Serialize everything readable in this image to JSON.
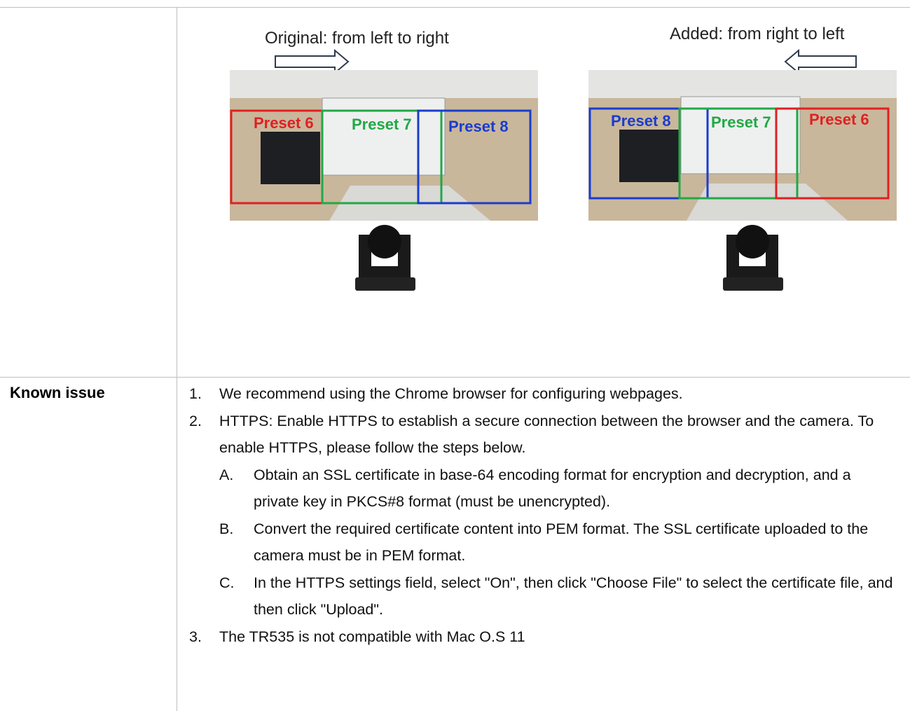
{
  "figure": {
    "left": {
      "caption": "Original: from left to right",
      "presets": [
        "Preset 6",
        "Preset 7",
        "Preset 8"
      ]
    },
    "right": {
      "caption": "Added: from right to left",
      "presets": [
        "Preset 8",
        "Preset 7",
        "Preset 6"
      ]
    }
  },
  "known_issue": {
    "label": "Known issue",
    "items": [
      {
        "number": "1.",
        "text": "We recommend using the Chrome browser for configuring webpages."
      },
      {
        "number": "2.",
        "text": "HTTPS: Enable HTTPS to establish a secure connection between the browser and the camera. To enable HTTPS, please follow the steps below.",
        "steps": [
          {
            "letter": "A.",
            "text": "Obtain an SSL certificate in base-64 encoding format for encryption and decryption, and a private key in PKCS#8 format (must be unencrypted)."
          },
          {
            "letter": "B.",
            "text": "Convert the required certificate content into PEM format. The SSL certificate uploaded to the camera must be in PEM format."
          },
          {
            "letter": "C.",
            "text": "In the HTTPS settings field, select \"On\", then click \"Choose File\" to select the certificate file, and then click \"Upload\"."
          }
        ]
      },
      {
        "number": "3.",
        "text": "The TR535 is not compatible with Mac O.S 11"
      }
    ]
  }
}
